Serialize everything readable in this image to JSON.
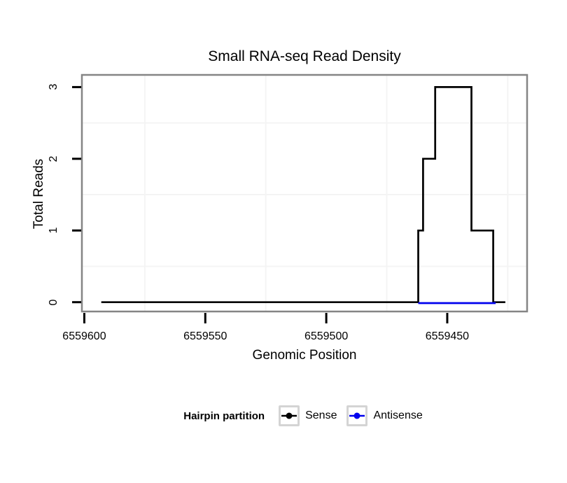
{
  "figure": {
    "background": "#ffffff",
    "panel_border_color": "#858585",
    "grid_color": "#f4f4f4",
    "tick_color": "#000000",
    "legend_key_border_color": "#d4d4d4"
  },
  "chart_data": {
    "type": "line",
    "title": "Small RNA-seq Read Density",
    "xlabel": "Genomic Position",
    "ylabel": "Total Reads",
    "x_reversed": true,
    "xlim": [
      6559417,
      6559601
    ],
    "ylim": [
      -0.13,
      3.17
    ],
    "grid": true,
    "x_ticks": [
      6559600,
      6559550,
      6559500,
      6559450
    ],
    "x_tick_labels": [
      "6559600",
      "6559550",
      "6559500",
      "6559450"
    ],
    "y_ticks": [
      0,
      1,
      2,
      3
    ],
    "y_tick_labels": [
      "0",
      "1",
      "2",
      "3"
    ],
    "x_gridlines": [
      6559575,
      6559525,
      6559475,
      6559425
    ],
    "y_gridlines": [
      0.5,
      1.5,
      2.5
    ],
    "legend": {
      "title": "Hairpin partition",
      "position": "bottom"
    },
    "series": [
      {
        "name": "Sense",
        "color": "#000000",
        "points": [
          [
            6559593,
            0
          ],
          [
            6559462,
            0
          ],
          [
            6559462,
            1
          ],
          [
            6559460,
            1
          ],
          [
            6559460,
            2
          ],
          [
            6559455,
            2
          ],
          [
            6559455,
            3
          ],
          [
            6559440,
            3
          ],
          [
            6559440,
            1
          ],
          [
            6559431,
            1
          ],
          [
            6559431,
            0
          ],
          [
            6559426,
            0
          ]
        ]
      },
      {
        "name": "Antisense",
        "color": "#0000ee",
        "points": [
          [
            6559462,
            0
          ],
          [
            6559430,
            0
          ]
        ]
      }
    ]
  }
}
